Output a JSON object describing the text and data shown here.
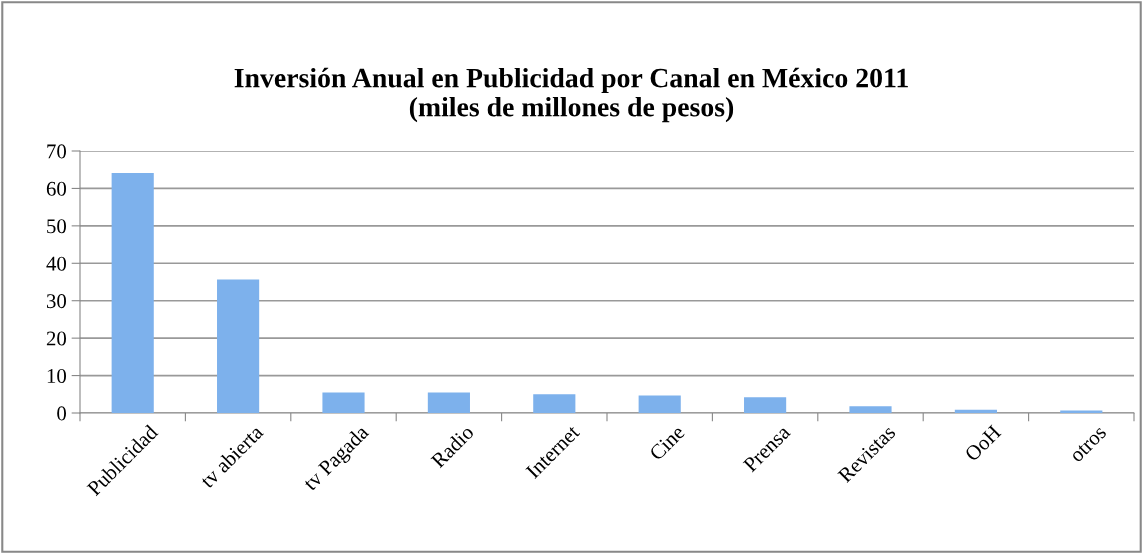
{
  "chart_data": {
    "type": "bar",
    "title": "Inversión Anual en Publicidad por Canal en México 2011\n(miles de millones de pesos)",
    "categories": [
      "Publicidad",
      "tv abierta",
      "tv Pagada",
      "Radio",
      "Internet",
      "Cine",
      "Prensa",
      "Revistas",
      "OoH",
      "otros"
    ],
    "values": [
      64.1,
      35.7,
      5.5,
      5.5,
      5.0,
      4.7,
      4.2,
      1.8,
      0.9,
      0.7
    ],
    "color": "#7db1ec",
    "ylim": [
      0,
      70
    ],
    "yticks": [
      0,
      10,
      20,
      30,
      40,
      50,
      60,
      70
    ],
    "grid": "y",
    "legend": false
  }
}
